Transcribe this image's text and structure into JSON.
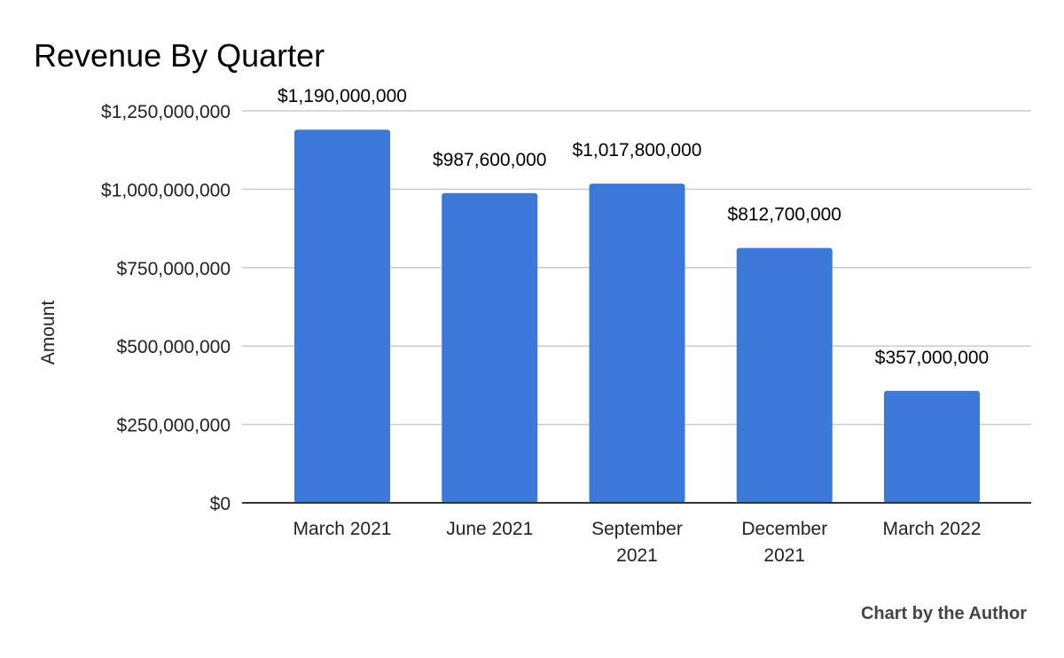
{
  "chart_data": {
    "type": "bar",
    "title": "Revenue By Quarter",
    "xlabel": "",
    "ylabel": "Amount",
    "categories": [
      "March 2021",
      "June 2021",
      "September 2021",
      "December 2021",
      "March 2022"
    ],
    "category_lines": [
      [
        "March 2021"
      ],
      [
        "June 2021"
      ],
      [
        "September",
        "2021"
      ],
      [
        "December",
        "2021"
      ],
      [
        "March 2022"
      ]
    ],
    "values": [
      1190000000,
      987600000,
      1017800000,
      812700000,
      357000000
    ],
    "data_labels": [
      "$1,190,000,000",
      "$987,600,000",
      "$1,017,800,000",
      "$812,700,000",
      "$357,000,000"
    ],
    "ylim": [
      0,
      1250000000
    ],
    "yticks": [
      0,
      250000000,
      500000000,
      750000000,
      1000000000,
      1250000000
    ],
    "ytick_labels": [
      "$0",
      "$250,000,000",
      "$500,000,000",
      "$750,000,000",
      "$1,000,000,000",
      "$1,250,000,000"
    ],
    "grid": true,
    "legend": "none",
    "bar_color": "#3c78d8",
    "grid_color": "#cccccc",
    "baseline_color": "#333333"
  },
  "credit": "Chart by the Author"
}
